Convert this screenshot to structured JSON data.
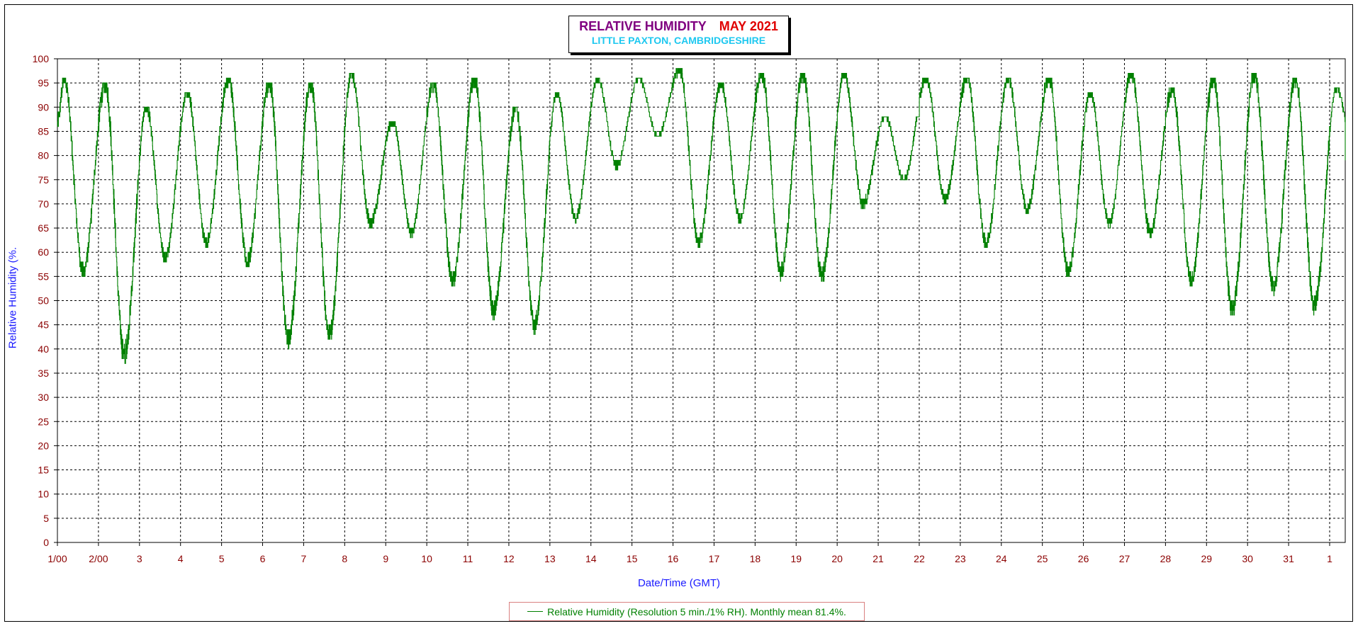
{
  "chart_data": {
    "type": "line",
    "title": "RELATIVE HUMIDITY",
    "title_month": "MAY 2021",
    "subtitle": "LITTLE PAXTON, CAMBRIDGESHIRE",
    "xlabel": "Date/Time (GMT)",
    "ylabel": "Relative Humidity (%.",
    "ylim": [
      0,
      100
    ],
    "yticks": [
      0,
      5,
      10,
      15,
      20,
      25,
      30,
      35,
      40,
      45,
      50,
      55,
      60,
      65,
      70,
      75,
      80,
      85,
      90,
      95,
      100
    ],
    "xlim": [
      0,
      31.38
    ],
    "xtick_labels": [
      "1/00",
      "2/00",
      "3",
      "4",
      "5",
      "6",
      "7",
      "8",
      "9",
      "10",
      "11",
      "12",
      "13",
      "14",
      "15",
      "16",
      "17",
      "18",
      "19",
      "20",
      "21",
      "22",
      "23",
      "24",
      "25",
      "26",
      "27",
      "28",
      "29",
      "30",
      "31",
      "1"
    ],
    "x_unit": "days since 1 May 2021 00:00 GMT",
    "grid": true,
    "legend_position": "bottom",
    "colors": {
      "series": "#008000",
      "tick_labels": "#8b0000",
      "axis_title": "#1a1aff",
      "title": "#800080",
      "month": "#e00000",
      "subtitle": "#1ec8f0"
    },
    "series": [
      {
        "name": "Relative Humidity (Resolution 5 min./1% RH). Monthly mean 81.4%.",
        "resolution_days": 0.0417,
        "daily_humidity": [
          {
            "day": 1,
            "max": 96,
            "min": 56,
            "mean": 80
          },
          {
            "day": 2,
            "max": 95,
            "min": 39,
            "mean": 74
          },
          {
            "day": 3,
            "max": 90,
            "min": 59,
            "mean": 76
          },
          {
            "day": 4,
            "max": 93,
            "min": 62,
            "mean": 80
          },
          {
            "day": 5,
            "max": 96,
            "min": 58,
            "mean": 82
          },
          {
            "day": 6,
            "max": 95,
            "min": 42,
            "mean": 78
          },
          {
            "day": 7,
            "max": 95,
            "min": 43,
            "mean": 76
          },
          {
            "day": 8,
            "max": 97,
            "min": 66,
            "mean": 84
          },
          {
            "day": 9,
            "max": 87,
            "min": 64,
            "mean": 80
          },
          {
            "day": 10,
            "max": 95,
            "min": 54,
            "mean": 80
          },
          {
            "day": 11,
            "max": 96,
            "min": 48,
            "mean": 78
          },
          {
            "day": 12,
            "max": 90,
            "min": 45,
            "mean": 75
          },
          {
            "day": 13,
            "max": 93,
            "min": 67,
            "mean": 83
          },
          {
            "day": 14,
            "max": 96,
            "min": 78,
            "mean": 89
          },
          {
            "day": 15,
            "max": 96,
            "min": 84,
            "mean": 91
          },
          {
            "day": 16,
            "max": 98,
            "min": 62,
            "mean": 85
          },
          {
            "day": 17,
            "max": 95,
            "min": 67,
            "mean": 84
          },
          {
            "day": 18,
            "max": 97,
            "min": 56,
            "mean": 82
          },
          {
            "day": 19,
            "max": 97,
            "min": 55,
            "mean": 83
          },
          {
            "day": 20,
            "max": 97,
            "min": 70,
            "mean": 85
          },
          {
            "day": 21,
            "max": 88,
            "min": 75,
            "mean": 80
          },
          {
            "day": 22,
            "max": 96,
            "min": 71,
            "mean": 86
          },
          {
            "day": 23,
            "max": 96,
            "min": 62,
            "mean": 83
          },
          {
            "day": 24,
            "max": 96,
            "min": 69,
            "mean": 85
          },
          {
            "day": 25,
            "max": 96,
            "min": 56,
            "mean": 82
          },
          {
            "day": 26,
            "max": 93,
            "min": 66,
            "mean": 82
          },
          {
            "day": 27,
            "max": 97,
            "min": 64,
            "mean": 83
          },
          {
            "day": 28,
            "max": 94,
            "min": 54,
            "mean": 79
          },
          {
            "day": 29,
            "max": 96,
            "min": 48,
            "mean": 77
          },
          {
            "day": 30,
            "max": 97,
            "min": 53,
            "mean": 80
          },
          {
            "day": 31,
            "max": 96,
            "min": 49,
            "mean": 77
          },
          {
            "day": 32,
            "max": 94,
            "min": 79,
            "mean": 88
          }
        ],
        "peak_hour": 4,
        "trough_hour": 15,
        "last_value": 79
      }
    ]
  }
}
